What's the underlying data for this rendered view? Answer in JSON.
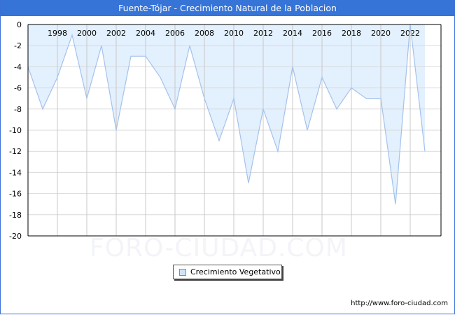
{
  "title": "Fuente-Tójar - Crecimiento Natural de la Poblacion",
  "watermark": "FORO-CIUDAD.COM",
  "footer_url": "http://www.foro-ciudad.com",
  "legend": {
    "label": "Crecimiento Vegetativo"
  },
  "colors": {
    "titlebar": "#3674d8",
    "area_fill": "#e3f0fd",
    "line": "#a4c2ec",
    "grid": "#d9d9d9"
  },
  "chart_data": {
    "type": "area",
    "title": "Fuente-Tójar - Crecimiento Natural de la Poblacion",
    "xlabel": "",
    "ylabel": "",
    "x": [
      1996,
      1997,
      1998,
      1999,
      2000,
      2001,
      2002,
      2003,
      2004,
      2005,
      2006,
      2007,
      2008,
      2009,
      2010,
      2011,
      2012,
      2013,
      2014,
      2015,
      2016,
      2017,
      2018,
      2019,
      2020,
      2021,
      2022,
      2023
    ],
    "series": [
      {
        "name": "Crecimiento Vegetativo",
        "values": [
          -4,
          -8,
          -5,
          -1,
          -7,
          -2,
          -10,
          -3,
          -3,
          -5,
          -8,
          -2,
          -7,
          -11,
          -7,
          -15,
          -8,
          -12,
          -4,
          -10,
          -5,
          -8,
          -6,
          -7,
          -7,
          -17,
          0,
          -12
        ]
      }
    ],
    "x_tick_labels": [
      "1998",
      "2000",
      "2002",
      "2004",
      "2006",
      "2008",
      "2010",
      "2012",
      "2014",
      "2016",
      "2018",
      "2020",
      "2022"
    ],
    "y_tick_labels": [
      "0",
      "-2",
      "-4",
      "-6",
      "-8",
      "-10",
      "-12",
      "-14",
      "-16",
      "-18",
      "-20"
    ],
    "ylim": [
      -20,
      0
    ],
    "grid": true,
    "legend_position": "bottom-center"
  }
}
